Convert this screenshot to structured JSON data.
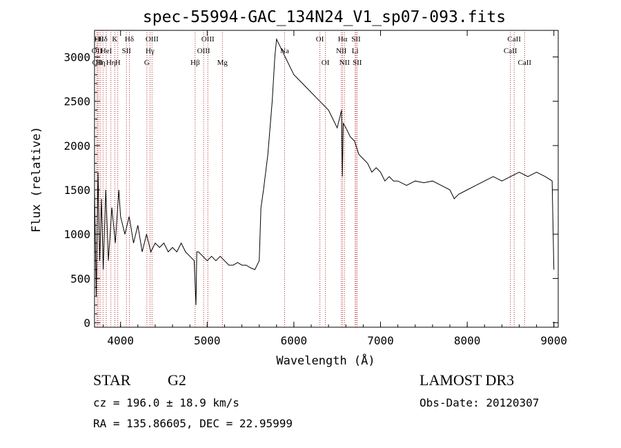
{
  "chart_data": {
    "type": "line",
    "title": "spec-55994-GAC_134N24_V1_sp07-093.fits",
    "xlabel": "Wavelength (Å)",
    "ylabel": "Flux (relative)",
    "xlim": [
      3700,
      9050
    ],
    "ylim": [
      -50,
      3300
    ],
    "x_ticks": [
      4000,
      5000,
      6000,
      7000,
      8000,
      9000
    ],
    "y_ticks": [
      0,
      500,
      1000,
      1500,
      2000,
      2500,
      3000
    ],
    "series": [
      {
        "name": "flux",
        "x": [
          3700,
          3720,
          3740,
          3760,
          3780,
          3800,
          3830,
          3860,
          3900,
          3940,
          3980,
          4000,
          4050,
          4100,
          4150,
          4200,
          4250,
          4300,
          4350,
          4400,
          4450,
          4500,
          4550,
          4600,
          4650,
          4700,
          4750,
          4800,
          4850,
          4870,
          4880,
          4900,
          4950,
          5000,
          5050,
          5100,
          5150,
          5200,
          5250,
          5300,
          5350,
          5400,
          5450,
          5500,
          5550,
          5600,
          5620,
          5650,
          5700,
          5750,
          5780,
          5800,
          5850,
          5900,
          5950,
          6000,
          6050,
          6100,
          6150,
          6200,
          6250,
          6300,
          6350,
          6400,
          6450,
          6500,
          6550,
          6560,
          6570,
          6600,
          6650,
          6700,
          6750,
          6800,
          6850,
          6900,
          6950,
          7000,
          7050,
          7100,
          7150,
          7200,
          7300,
          7400,
          7500,
          7600,
          7700,
          7800,
          7850,
          7900,
          8000,
          8100,
          8200,
          8300,
          8400,
          8500,
          8600,
          8700,
          8800,
          8900,
          8980,
          9000
        ],
        "y": [
          1500,
          300,
          1700,
          700,
          1400,
          600,
          1500,
          700,
          1300,
          900,
          1500,
          1200,
          1000,
          1200,
          900,
          1100,
          800,
          1000,
          800,
          900,
          850,
          900,
          800,
          850,
          800,
          900,
          800,
          750,
          700,
          200,
          800,
          800,
          750,
          700,
          750,
          700,
          750,
          700,
          650,
          650,
          680,
          650,
          650,
          620,
          600,
          700,
          1300,
          1500,
          1900,
          2500,
          3000,
          3200,
          3100,
          3000,
          2900,
          2800,
          2750,
          2700,
          2650,
          2600,
          2550,
          2500,
          2450,
          2400,
          2300,
          2200,
          2400,
          1650,
          2250,
          2200,
          2100,
          2050,
          1900,
          1850,
          1800,
          1700,
          1750,
          1700,
          1600,
          1650,
          1600,
          1600,
          1550,
          1600,
          1580,
          1600,
          1550,
          1500,
          1400,
          1450,
          1500,
          1550,
          1600,
          1650,
          1600,
          1650,
          1700,
          1650,
          1700,
          1650,
          1600,
          600
        ]
      }
    ],
    "line_markers": [
      {
        "x": 3727,
        "label": "OII",
        "row": 2
      },
      {
        "x": 3734,
        "label": "OII",
        "row": 3
      },
      {
        "x": 3750,
        "label": "Hθ",
        "row": 1
      },
      {
        "x": 3770,
        "label": "Hη",
        "row": 3
      },
      {
        "x": 3798,
        "label": "Hδ",
        "row": 1
      },
      {
        "x": 3835,
        "label": "HeI",
        "row": 2
      },
      {
        "x": 3889,
        "label": "Hη",
        "row": 3
      },
      {
        "x": 3934,
        "label": "K",
        "row": 1
      },
      {
        "x": 3968,
        "label": "H",
        "row": 3
      },
      {
        "x": 4068,
        "label": "SII",
        "row": 2
      },
      {
        "x": 4102,
        "label": "Hδ",
        "row": 1
      },
      {
        "x": 4304,
        "label": "G",
        "row": 3
      },
      {
        "x": 4340,
        "label": "Hγ",
        "row": 2
      },
      {
        "x": 4363,
        "label": "OIII",
        "row": 1
      },
      {
        "x": 4861,
        "label": "Hβ",
        "row": 3
      },
      {
        "x": 4959,
        "label": "OIII",
        "row": 2
      },
      {
        "x": 5007,
        "label": "OIII",
        "row": 1
      },
      {
        "x": 5175,
        "label": "Mg",
        "row": 3
      },
      {
        "x": 5893,
        "label": "Na",
        "row": 2
      },
      {
        "x": 6300,
        "label": "OI",
        "row": 1
      },
      {
        "x": 6364,
        "label": "OI",
        "row": 3
      },
      {
        "x": 6548,
        "label": "NII",
        "row": 2
      },
      {
        "x": 6563,
        "label": "Hα",
        "row": 1
      },
      {
        "x": 6584,
        "label": "NII",
        "row": 3
      },
      {
        "x": 6707,
        "label": "Li",
        "row": 2
      },
      {
        "x": 6717,
        "label": "SII",
        "row": 1
      },
      {
        "x": 6731,
        "label": "SII",
        "row": 3
      },
      {
        "x": 8498,
        "label": "CaII",
        "row": 2
      },
      {
        "x": 8542,
        "label": "CaII",
        "row": 1
      },
      {
        "x": 8662,
        "label": "CaII",
        "row": 3
      }
    ],
    "line_color": "#000000",
    "marker_color": "#b22222"
  },
  "info": {
    "class": "STAR",
    "subclass": "G2",
    "survey": "LAMOST DR3",
    "cz": "cz = 196.0 ± 18.9 km/s",
    "obs_date": "Obs-Date: 20120307",
    "coords": "RA = 135.86605, DEC =  22.95999"
  }
}
